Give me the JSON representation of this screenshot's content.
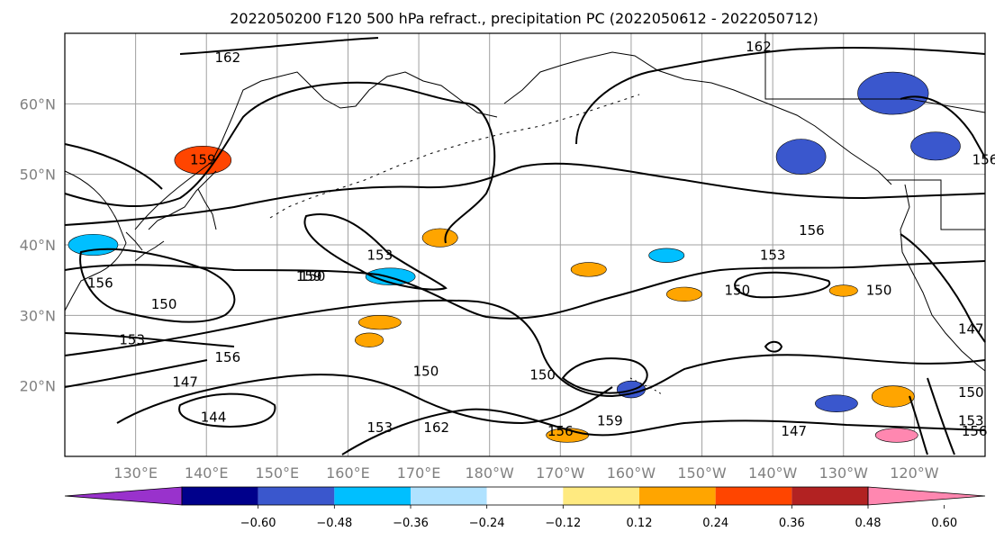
{
  "chart_data": {
    "type": "contour-map",
    "title": "2022050200 F120 500 hPa refract., precipitation PC (2022050612 - 2022050712)",
    "x_ticks": [
      "130°E",
      "140°E",
      "150°E",
      "160°E",
      "170°E",
      "180°W",
      "170°W",
      "160°W",
      "150°W",
      "140°W",
      "130°W",
      "120°W"
    ],
    "y_ticks": [
      "20°N",
      "30°N",
      "40°N",
      "50°N",
      "60°N"
    ],
    "lon_range": [
      120,
      250
    ],
    "lat_range": [
      10,
      70
    ],
    "grid": true,
    "contour_levels": [
      144,
      147,
      150,
      153,
      156,
      159,
      162
    ],
    "contour_labels": [
      {
        "text": "162",
        "lon": 143,
        "lat": 66.5
      },
      {
        "text": "162",
        "lon": 218,
        "lat": 68
      },
      {
        "text": "159",
        "lon": 139.5,
        "lat": 52
      },
      {
        "text": "156",
        "lon": 225.5,
        "lat": 42
      },
      {
        "text": "156",
        "lon": 125,
        "lat": 34.5
      },
      {
        "text": "156",
        "lon": 250,
        "lat": 52
      },
      {
        "text": "153",
        "lon": 164.5,
        "lat": 38.5
      },
      {
        "text": "153",
        "lon": 220,
        "lat": 38.5
      },
      {
        "text": "150",
        "lon": 215,
        "lat": 33.5
      },
      {
        "text": "150",
        "lon": 134,
        "lat": 31.5
      },
      {
        "text": "150",
        "lon": 155,
        "lat": 35.5
      },
      {
        "text": "159",
        "lon": 154.5,
        "lat": 35.5
      },
      {
        "text": "153",
        "lon": 129.5,
        "lat": 26.5
      },
      {
        "text": "150",
        "lon": 235,
        "lat": 33.5
      },
      {
        "text": "156",
        "lon": 143,
        "lat": 24
      },
      {
        "text": "147",
        "lon": 137,
        "lat": 20.5
      },
      {
        "text": "144",
        "lon": 141,
        "lat": 15.5
      },
      {
        "text": "150",
        "lon": 171,
        "lat": 22
      },
      {
        "text": "150",
        "lon": 187.5,
        "lat": 21.5
      },
      {
        "text": "153",
        "lon": 164.5,
        "lat": 14
      },
      {
        "text": "162",
        "lon": 172.5,
        "lat": 14
      },
      {
        "text": "156",
        "lon": 190,
        "lat": 13.5
      },
      {
        "text": "159",
        "lon": 197,
        "lat": 15
      },
      {
        "text": "147",
        "lon": 223,
        "lat": 13.5
      },
      {
        "text": "150",
        "lon": 248,
        "lat": 19
      },
      {
        "text": "153",
        "lon": 248,
        "lat": 15
      },
      {
        "text": "156",
        "lon": 248.5,
        "lat": 13.5
      },
      {
        "text": "147",
        "lon": 248,
        "lat": 28
      }
    ],
    "colorbar": {
      "ticks": [
        "−0.60",
        "−0.48",
        "−0.36",
        "−0.24",
        "−0.12",
        "0.12",
        "0.24",
        "0.36",
        "0.48",
        "0.60"
      ],
      "colors": [
        "#9932CC",
        "#00008B",
        "#3A57CD",
        "#00BFFF",
        "#B0E2FF",
        "#FFFFFF",
        "#FFEA80",
        "#FFA500",
        "#FF4500",
        "#B22222",
        "#FF87B0"
      ]
    },
    "precip_patches": [
      {
        "lon": 164.5,
        "lat": 29,
        "rx": 3,
        "ry": 1,
        "color": "#FFA500"
      },
      {
        "lon": 139.5,
        "lat": 52,
        "rx": 4,
        "ry": 2,
        "color": "#FF4500"
      },
      {
        "lon": 173,
        "lat": 41,
        "rx": 2.5,
        "ry": 1.3,
        "color": "#FFA500"
      },
      {
        "lon": 166,
        "lat": 35.5,
        "rx": 3.5,
        "ry": 1.2,
        "color": "#00BFFF"
      },
      {
        "lon": 237,
        "lat": 61.5,
        "rx": 5,
        "ry": 3,
        "color": "#3A57CD"
      },
      {
        "lon": 243,
        "lat": 54,
        "rx": 3.5,
        "ry": 2,
        "color": "#3A57CD"
      },
      {
        "lon": 224,
        "lat": 52.5,
        "rx": 3.5,
        "ry": 2.5,
        "color": "#3A57CD"
      },
      {
        "lon": 229,
        "lat": 17.5,
        "rx": 3,
        "ry": 1.2,
        "color": "#3A57CD"
      },
      {
        "lon": 124,
        "lat": 40,
        "rx": 3.5,
        "ry": 1.5,
        "color": "#00BFFF"
      },
      {
        "lon": 237,
        "lat": 18.5,
        "rx": 3,
        "ry": 1.5,
        "color": "#FFA500"
      },
      {
        "lon": 194,
        "lat": 36.5,
        "rx": 2.5,
        "ry": 1,
        "color": "#FFA500"
      },
      {
        "lon": 207.5,
        "lat": 33,
        "rx": 2.5,
        "ry": 1,
        "color": "#FFA500"
      },
      {
        "lon": 230,
        "lat": 33.5,
        "rx": 2,
        "ry": 0.8,
        "color": "#FFA500"
      },
      {
        "lon": 163,
        "lat": 26.5,
        "rx": 2,
        "ry": 1,
        "color": "#FFA500"
      },
      {
        "lon": 191,
        "lat": 13,
        "rx": 3,
        "ry": 1,
        "color": "#FFA500"
      },
      {
        "lon": 200,
        "lat": 19.5,
        "rx": 2,
        "ry": 1.2,
        "color": "#3A57CD"
      },
      {
        "lon": 205,
        "lat": 38.5,
        "rx": 2.5,
        "ry": 1,
        "color": "#00BFFF"
      },
      {
        "lon": 237.5,
        "lat": 13,
        "rx": 3,
        "ry": 1,
        "color": "#FF87B0"
      }
    ]
  }
}
